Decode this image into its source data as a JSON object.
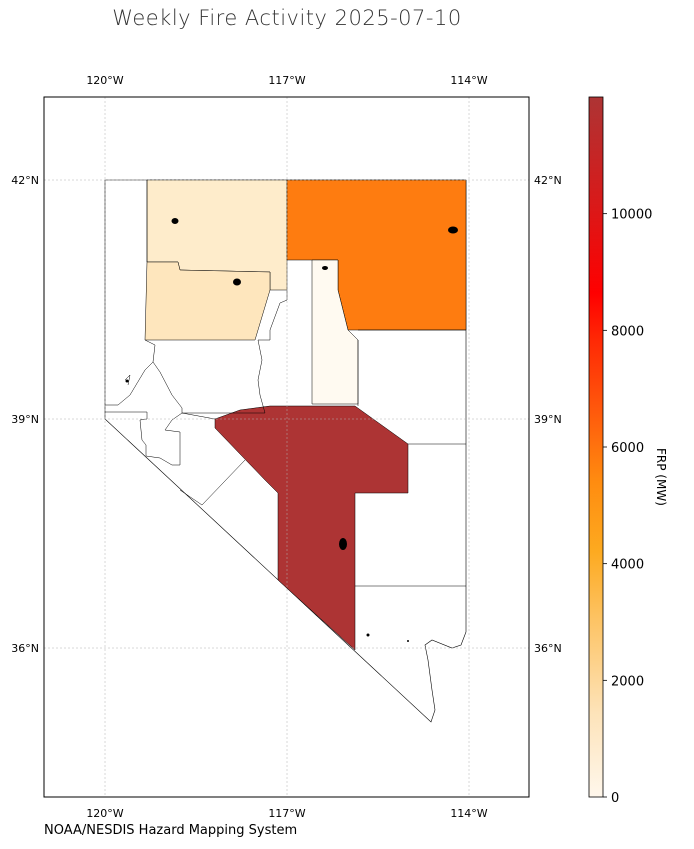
{
  "title": "Weekly Fire Activity 2025-07-10",
  "credit": "NOAA/NESDIS Hazard Mapping System",
  "colorbar": {
    "label": "FRP (MW)",
    "ticks": [
      "0",
      "2000",
      "4000",
      "6000",
      "8000",
      "10000"
    ],
    "tick_values": [
      0,
      2000,
      4000,
      6000,
      8000,
      10000
    ],
    "max": 12000,
    "colors": [
      "#fff7ec",
      "#fdd49e",
      "#fdae45",
      "#ff7a10",
      "#ff3b0a",
      "#ff0000",
      "#d81e1e",
      "#ad3434"
    ]
  },
  "axes": {
    "lon_ticks": [
      "120°W",
      "117°W",
      "114°W"
    ],
    "lat_ticks": [
      "42°N",
      "39°N",
      "36°N"
    ]
  },
  "regions": {
    "humboldt": {
      "frp": 300,
      "color": "#feeccb"
    },
    "pershing": {
      "frp": 400,
      "color": "#fee6bd"
    },
    "elko": {
      "frp": 5000,
      "color": "#fe7c10"
    },
    "lander": {
      "frp": 80,
      "color": "#fffaf1"
    },
    "nye": {
      "frp": 12000,
      "color": "#ad3434"
    }
  },
  "legend_colors": {
    "border": "#000000",
    "grid": "#b0b0b0",
    "fire": "#000000"
  }
}
